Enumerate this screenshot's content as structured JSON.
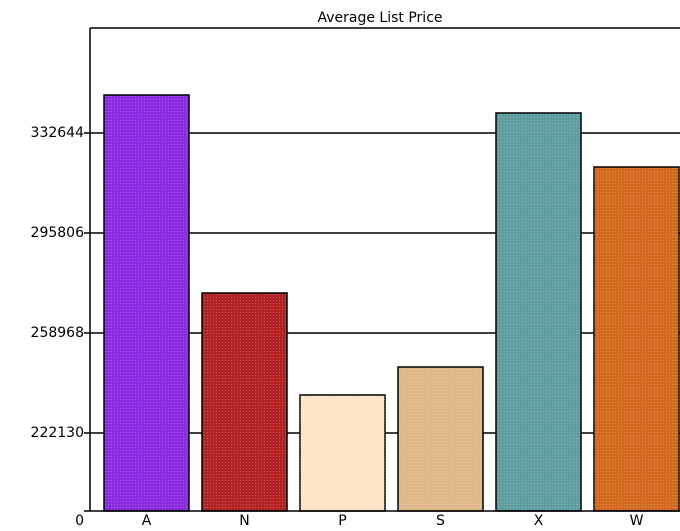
{
  "chart_data": {
    "type": "bar",
    "title": "Average List Price",
    "categories": [
      "A",
      "N",
      "P",
      "S",
      "X",
      "W"
    ],
    "values": [
      346642,
      273703,
      236128,
      246443,
      340012,
      320119
    ],
    "colors": [
      "#8a2be2",
      "#b22222",
      "#ffe4c4",
      "#deb887",
      "#5f9ea0",
      "#d2691e"
    ],
    "ylim": [
      0,
      371324
    ],
    "broken_axis_from": 193396,
    "yticks": [
      0,
      222130,
      258968,
      295806,
      332644
    ],
    "grid": true
  }
}
